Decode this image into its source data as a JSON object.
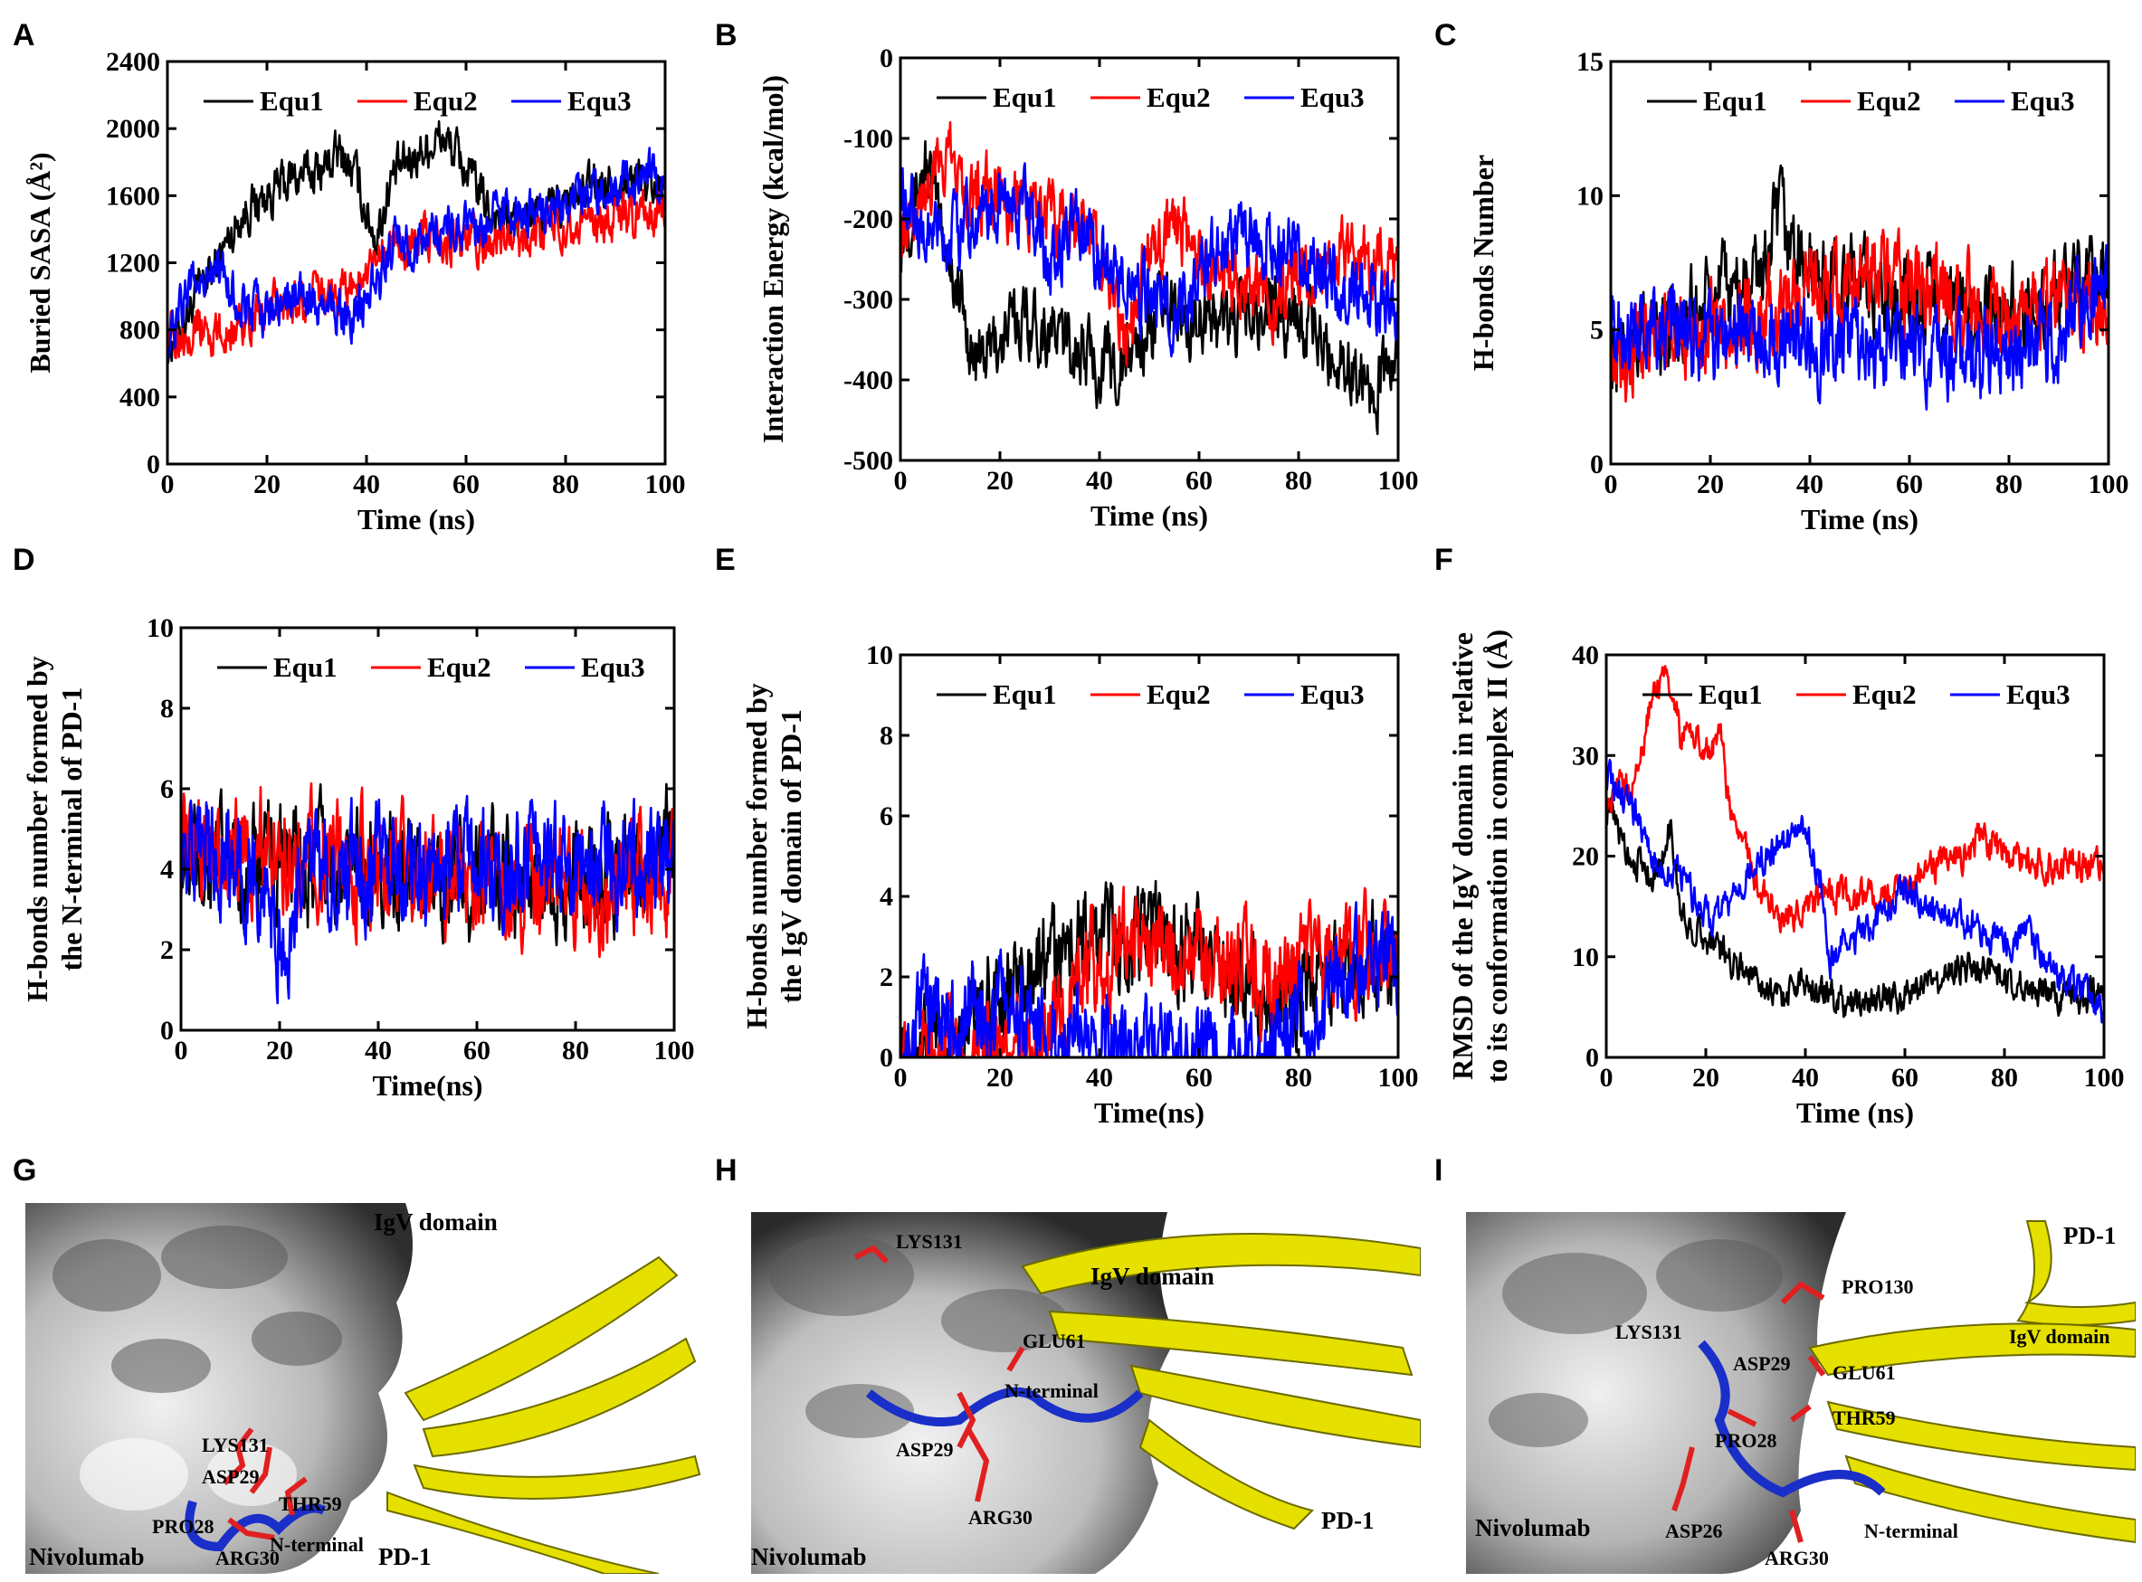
{
  "figure": {
    "panel_letters": [
      "A",
      "B",
      "C",
      "D",
      "E",
      "F",
      "G",
      "H",
      "I"
    ]
  },
  "colors": {
    "Equ1": "#000000",
    "Equ2": "#ff0000",
    "Equ3": "#0000ff",
    "ribbon": "#e8e000",
    "loop_blue": "#1a2fc8",
    "residue_red": "#e02020"
  },
  "chart_data": [
    {
      "id": "A",
      "type": "line",
      "ylabel": "Buried SASA (Å²)",
      "xlabel": "Time (ns)",
      "xlim": [
        0,
        100
      ],
      "ylim": [
        0,
        2400
      ],
      "xticks": [
        "0",
        "20",
        "40",
        "60",
        "80",
        "100"
      ],
      "yticks": [
        "0",
        "400",
        "800",
        "1200",
        "1600",
        "2000",
        "2400"
      ],
      "legend": [
        "Equ1",
        "Equ2",
        "Equ3"
      ],
      "series": [
        {
          "name": "Equ1",
          "x": [
            0,
            5,
            10,
            15,
            20,
            25,
            30,
            35,
            38,
            40,
            42,
            45,
            50,
            55,
            58,
            62,
            65,
            70,
            75,
            80,
            85,
            90,
            95,
            100
          ],
          "y": [
            700,
            950,
            1200,
            1500,
            1600,
            1700,
            1750,
            1850,
            1700,
            1500,
            1350,
            1700,
            1850,
            1950,
            1850,
            1650,
            1500,
            1450,
            1500,
            1550,
            1650,
            1700,
            1700,
            1650
          ],
          "noise": 110
        },
        {
          "name": "Equ2",
          "x": [
            0,
            5,
            10,
            15,
            20,
            25,
            30,
            35,
            40,
            45,
            50,
            55,
            60,
            65,
            70,
            75,
            80,
            85,
            90,
            95,
            100
          ],
          "y": [
            750,
            850,
            750,
            850,
            900,
            950,
            1000,
            1050,
            1100,
            1300,
            1350,
            1350,
            1350,
            1300,
            1350,
            1400,
            1450,
            1400,
            1450,
            1450,
            1500
          ],
          "noise": 110
        },
        {
          "name": "Equ3",
          "x": [
            0,
            5,
            10,
            15,
            20,
            25,
            30,
            35,
            40,
            45,
            50,
            55,
            60,
            65,
            70,
            75,
            80,
            85,
            90,
            95,
            100
          ],
          "y": [
            700,
            1100,
            1150,
            950,
            900,
            1000,
            950,
            900,
            950,
            1300,
            1300,
            1400,
            1400,
            1450,
            1500,
            1500,
            1550,
            1650,
            1700,
            1700,
            1750
          ],
          "noise": 110
        }
      ]
    },
    {
      "id": "B",
      "type": "line",
      "ylabel": "Interaction Energy (kcal/mol)",
      "xlabel": "Time (ns)",
      "xlim": [
        0,
        100
      ],
      "ylim": [
        -500,
        0
      ],
      "xticks": [
        "0",
        "20",
        "40",
        "60",
        "80",
        "100"
      ],
      "yticks": [
        "-500",
        "-400",
        "-300",
        "-200",
        "-100",
        "0"
      ],
      "legend": [
        "Equ1",
        "Equ2",
        "Equ3"
      ],
      "series": [
        {
          "name": "Equ1",
          "x": [
            0,
            5,
            10,
            15,
            20,
            25,
            30,
            35,
            40,
            45,
            50,
            55,
            60,
            65,
            70,
            75,
            80,
            85,
            90,
            95,
            100
          ],
          "y": [
            -220,
            -130,
            -250,
            -380,
            -350,
            -320,
            -340,
            -360,
            -380,
            -380,
            -330,
            -310,
            -320,
            -330,
            -320,
            -310,
            -320,
            -360,
            -380,
            -410,
            -380
          ],
          "noise": 35
        },
        {
          "name": "Equ2",
          "x": [
            0,
            5,
            10,
            15,
            20,
            25,
            30,
            35,
            40,
            45,
            50,
            55,
            60,
            65,
            70,
            75,
            80,
            85,
            90,
            95,
            100
          ],
          "y": [
            -200,
            -160,
            -120,
            -170,
            -170,
            -180,
            -200,
            -210,
            -240,
            -350,
            -250,
            -200,
            -250,
            -280,
            -290,
            -300,
            -270,
            -260,
            -250,
            -250,
            -250
          ],
          "noise": 35
        },
        {
          "name": "Equ3",
          "x": [
            0,
            5,
            10,
            15,
            20,
            25,
            30,
            35,
            40,
            45,
            50,
            55,
            60,
            65,
            70,
            75,
            80,
            85,
            90,
            95,
            100
          ],
          "y": [
            -150,
            -220,
            -230,
            -200,
            -180,
            -190,
            -260,
            -210,
            -250,
            -270,
            -300,
            -320,
            -260,
            -230,
            -220,
            -230,
            -250,
            -270,
            -280,
            -300,
            -310
          ],
          "noise": 35
        }
      ]
    },
    {
      "id": "C",
      "type": "line",
      "ylabel": "H-bonds Number",
      "xlabel": "Time (ns)",
      "xlim": [
        0,
        100
      ],
      "ylim": [
        0,
        15
      ],
      "xticks": [
        "0",
        "20",
        "40",
        "60",
        "80",
        "100"
      ],
      "yticks": [
        "0",
        "5",
        "10",
        "15"
      ],
      "legend": [
        "Equ1",
        "Equ2",
        "Equ3"
      ],
      "series": [
        {
          "name": "Equ1",
          "x": [
            0,
            10,
            20,
            30,
            34,
            40,
            50,
            60,
            70,
            80,
            90,
            100
          ],
          "y": [
            4,
            5,
            6,
            7,
            9,
            7,
            6.5,
            6,
            5.5,
            5.5,
            6,
            7
          ],
          "noise": 1.3
        },
        {
          "name": "Equ2",
          "x": [
            0,
            10,
            20,
            30,
            40,
            50,
            60,
            70,
            80,
            90,
            100
          ],
          "y": [
            4,
            5,
            5,
            5.5,
            6.5,
            7,
            6.5,
            6,
            5.5,
            6,
            6
          ],
          "noise": 1.3
        },
        {
          "name": "Equ3",
          "x": [
            0,
            10,
            20,
            30,
            40,
            50,
            60,
            70,
            80,
            90,
            100
          ],
          "y": [
            5,
            5.5,
            4.5,
            5,
            4.5,
            4.5,
            4.5,
            4,
            4,
            5,
            6.5
          ],
          "noise": 1.3
        }
      ]
    },
    {
      "id": "D",
      "type": "line",
      "ylabel": "H-bonds number formed by the N-terminal of PD-1",
      "xlabel": "Time(ns)",
      "xlim": [
        0,
        100
      ],
      "ylim": [
        0,
        10
      ],
      "xticks": [
        "0",
        "20",
        "40",
        "60",
        "80",
        "100"
      ],
      "yticks": [
        "0",
        "2",
        "4",
        "6",
        "8",
        "10"
      ],
      "legend": [
        "Equ1",
        "Equ2",
        "Equ3"
      ],
      "series": [
        {
          "name": "Equ1",
          "x": [
            0,
            20,
            40,
            60,
            80,
            100
          ],
          "y": [
            4.2,
            4,
            4.2,
            3.8,
            3.8,
            4.5
          ],
          "noise": 1.1
        },
        {
          "name": "Equ2",
          "x": [
            0,
            20,
            40,
            60,
            80,
            100
          ],
          "y": [
            4.5,
            4.5,
            4,
            3.8,
            3.7,
            3.8
          ],
          "noise": 1.1
        },
        {
          "name": "Equ3",
          "x": [
            0,
            15,
            20,
            25,
            40,
            60,
            80,
            100
          ],
          "y": [
            4.5,
            4,
            2,
            4,
            4,
            4.2,
            4.1,
            4.2
          ],
          "noise": 1.1
        }
      ]
    },
    {
      "id": "E",
      "type": "line",
      "ylabel": "H-bonds number formed by the IgV domain of PD-1",
      "xlabel": "Time(ns)",
      "xlim": [
        0,
        100
      ],
      "ylim": [
        0,
        10
      ],
      "xticks": [
        "0",
        "20",
        "40",
        "60",
        "80",
        "100"
      ],
      "yticks": [
        "0",
        "2",
        "4",
        "6",
        "8",
        "10"
      ],
      "legend": [
        "Equ1",
        "Equ2",
        "Equ3"
      ],
      "series": [
        {
          "name": "Equ1",
          "x": [
            0,
            10,
            20,
            30,
            40,
            50,
            60,
            70,
            80,
            90,
            100
          ],
          "y": [
            0,
            0.3,
            1.5,
            2.5,
            3,
            3,
            2.5,
            1.5,
            1.5,
            2.5,
            2.5
          ],
          "noise": 1.0
        },
        {
          "name": "Equ2",
          "x": [
            0,
            10,
            20,
            30,
            40,
            50,
            60,
            70,
            80,
            90,
            100
          ],
          "y": [
            0,
            0,
            0,
            0.5,
            2.5,
            3,
            2.5,
            2,
            2,
            2.5,
            2.5
          ],
          "noise": 1.0
        },
        {
          "name": "Equ3",
          "x": [
            0,
            5,
            10,
            20,
            30,
            40,
            50,
            60,
            70,
            80,
            90,
            100
          ],
          "y": [
            0,
            1,
            1,
            1.2,
            0.8,
            0.5,
            0,
            0,
            0,
            0.8,
            2,
            2.5
          ],
          "noise": 1.0
        }
      ]
    },
    {
      "id": "F",
      "type": "line",
      "ylabel": "RMSD of the IgV domain in relative to its conformation in complex II (Å)",
      "xlabel": "Time (ns)",
      "xlim": [
        0,
        100
      ],
      "ylim": [
        0,
        40
      ],
      "xticks": [
        "0",
        "20",
        "40",
        "60",
        "80",
        "100"
      ],
      "yticks": [
        "0",
        "10",
        "20",
        "30",
        "40"
      ],
      "legend": [
        "Equ1",
        "Equ2",
        "Equ3"
      ],
      "series": [
        {
          "name": "Equ1",
          "x": [
            0,
            5,
            10,
            13,
            15,
            20,
            25,
            30,
            35,
            40,
            45,
            50,
            55,
            60,
            70,
            80,
            90,
            100
          ],
          "y": [
            25,
            20,
            18,
            23,
            14,
            12,
            10,
            8,
            6,
            8,
            6,
            5,
            6,
            6,
            9,
            8,
            6,
            6
          ],
          "noise": 1.3
        },
        {
          "name": "Equ2",
          "x": [
            0,
            5,
            10,
            13,
            15,
            18,
            20,
            23,
            25,
            30,
            35,
            40,
            45,
            50,
            55,
            60,
            65,
            70,
            75,
            80,
            90,
            100
          ],
          "y": [
            26,
            27,
            37,
            38,
            32,
            33,
            30,
            32,
            24,
            18,
            14,
            15,
            16,
            16,
            16,
            17,
            19,
            19,
            22,
            20,
            19,
            19
          ],
          "noise": 1.3
        },
        {
          "name": "Equ3",
          "x": [
            0,
            5,
            10,
            15,
            20,
            25,
            30,
            35,
            40,
            43,
            45,
            50,
            55,
            60,
            65,
            70,
            75,
            80,
            85,
            90,
            100
          ],
          "y": [
            28,
            25,
            19,
            18,
            14,
            15,
            20,
            21,
            23,
            18,
            10,
            12,
            14,
            17,
            15,
            14,
            13,
            11,
            12,
            8,
            5
          ],
          "noise": 1.3
        }
      ]
    }
  ],
  "structures": [
    {
      "id": "G",
      "labels": {
        "igv": "IgV domain",
        "lys": "LYS131",
        "asp29": "ASP29",
        "thr": "THR59",
        "pro": "PRO28",
        "arg": "ARG30",
        "nterm": "N-terminal",
        "nivo": "Nivolumab",
        "pd1": "PD-1"
      }
    },
    {
      "id": "H",
      "labels": {
        "lys": "LYS131",
        "igv": "IgV domain",
        "glu": "GLU61",
        "nterm": "N-terminal",
        "asp29": "ASP29",
        "arg": "ARG30",
        "nivo": "Nivolumab",
        "pd1": "PD-1"
      }
    },
    {
      "id": "I",
      "labels": {
        "pd1": "PD-1",
        "pro130": "PRO130",
        "lys": "LYS131",
        "igv": "IgV domain",
        "asp29": "ASP29",
        "glu": "GLU61",
        "thr": "THR59",
        "pro28": "PRO28",
        "asp26": "ASP26",
        "arg": "ARG30",
        "nterm": "N-terminal",
        "nivo": "Nivolumab"
      }
    }
  ]
}
